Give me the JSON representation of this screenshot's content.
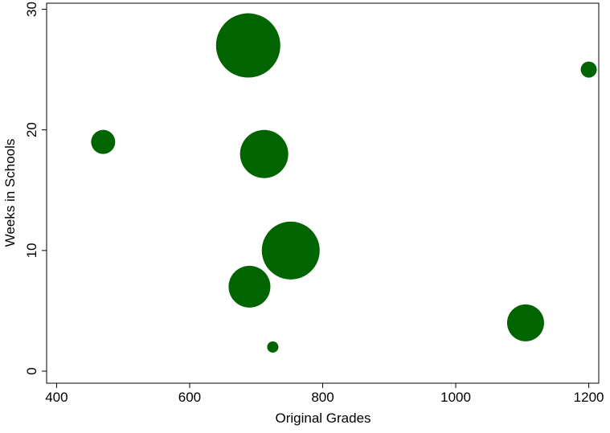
{
  "chart_data": {
    "type": "scatter",
    "variant": "bubble",
    "xlabel": "Original Grades",
    "ylabel": "Weeks in Schools",
    "xlim": [
      385,
      1215
    ],
    "ylim": [
      -1,
      30.5
    ],
    "x_ticks": [
      400,
      600,
      800,
      1000,
      1200
    ],
    "y_ticks": [
      0,
      10,
      20,
      30
    ],
    "grid": false,
    "legend": "none",
    "marker_color": "#006400",
    "points": [
      {
        "x": 688,
        "y": 27,
        "size": 40
      },
      {
        "x": 1200,
        "y": 25,
        "size": 10
      },
      {
        "x": 470,
        "y": 19,
        "size": 15
      },
      {
        "x": 712,
        "y": 18,
        "size": 30
      },
      {
        "x": 752,
        "y": 10,
        "size": 36
      },
      {
        "x": 690,
        "y": 7,
        "size": 26
      },
      {
        "x": 1105,
        "y": 4,
        "size": 23
      },
      {
        "x": 725,
        "y": 2,
        "size": 7
      }
    ]
  }
}
